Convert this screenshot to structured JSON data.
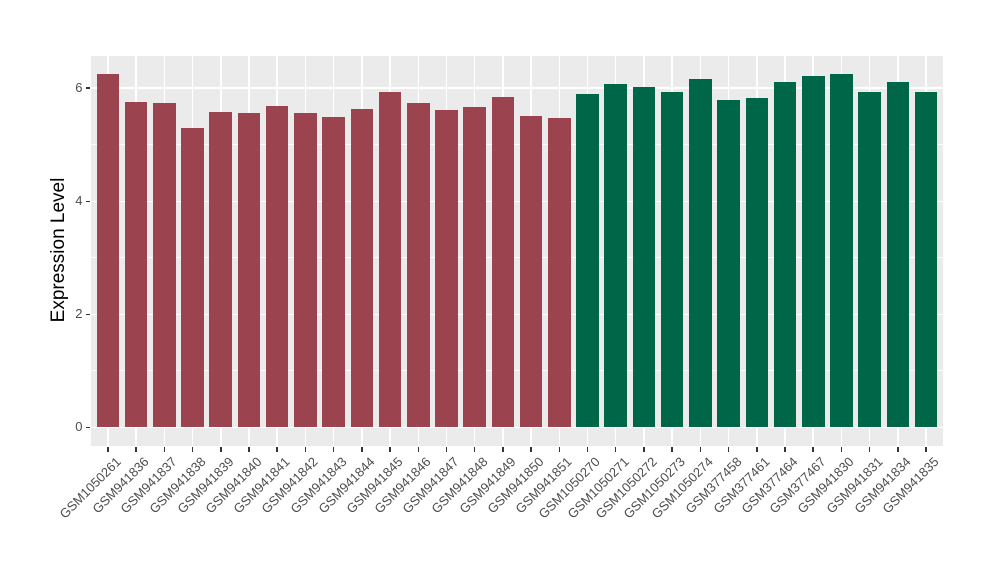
{
  "chart_data": {
    "type": "bar",
    "title": "",
    "xlabel": "",
    "ylabel": "Expression Level",
    "ylim": [
      -0.33,
      6.57
    ],
    "grid": "on",
    "legend": "none",
    "y_major_ticks": [
      0,
      2,
      4,
      6
    ],
    "y_tick_labels": [
      "0",
      "2",
      "4",
      "6"
    ],
    "y_minor_gridlines": [
      1,
      3,
      5
    ],
    "categories": [
      "GSM1050261",
      "GSM941836",
      "GSM941837",
      "GSM941838",
      "GSM941839",
      "GSM941840",
      "GSM941841",
      "GSM941842",
      "GSM941843",
      "GSM941844",
      "GSM941845",
      "GSM941846",
      "GSM941847",
      "GSM941848",
      "GSM941849",
      "GSM941850",
      "GSM941851",
      "GSM1050270",
      "GSM1050271",
      "GSM1050272",
      "GSM1050273",
      "GSM1050274",
      "GSM377458",
      "GSM377461",
      "GSM377464",
      "GSM377467",
      "GSM941830",
      "GSM941831",
      "GSM941834",
      "GSM941835"
    ],
    "values": [
      6.25,
      5.75,
      5.74,
      5.3,
      5.58,
      5.56,
      5.68,
      5.56,
      5.49,
      5.64,
      5.93,
      5.74,
      5.61,
      5.66,
      5.84,
      5.51,
      5.48,
      5.9,
      6.07,
      6.02,
      5.94,
      6.16,
      5.79,
      5.83,
      6.11,
      6.22,
      6.25,
      5.93,
      6.11,
      5.94
    ],
    "groups": [
      {
        "name": "left-group",
        "color": "#9B4450",
        "count": 17
      },
      {
        "name": "right-group",
        "color": "#006648",
        "count": 13
      }
    ]
  },
  "styles": {
    "panel_background": "#EBEBEB",
    "grid_color": "#FFFFFF",
    "axis_text_color": "#4D4D4D",
    "axis_tick_color": "#333333",
    "axis_title_color": "#000000",
    "figure_background": "#FFFFFF"
  }
}
